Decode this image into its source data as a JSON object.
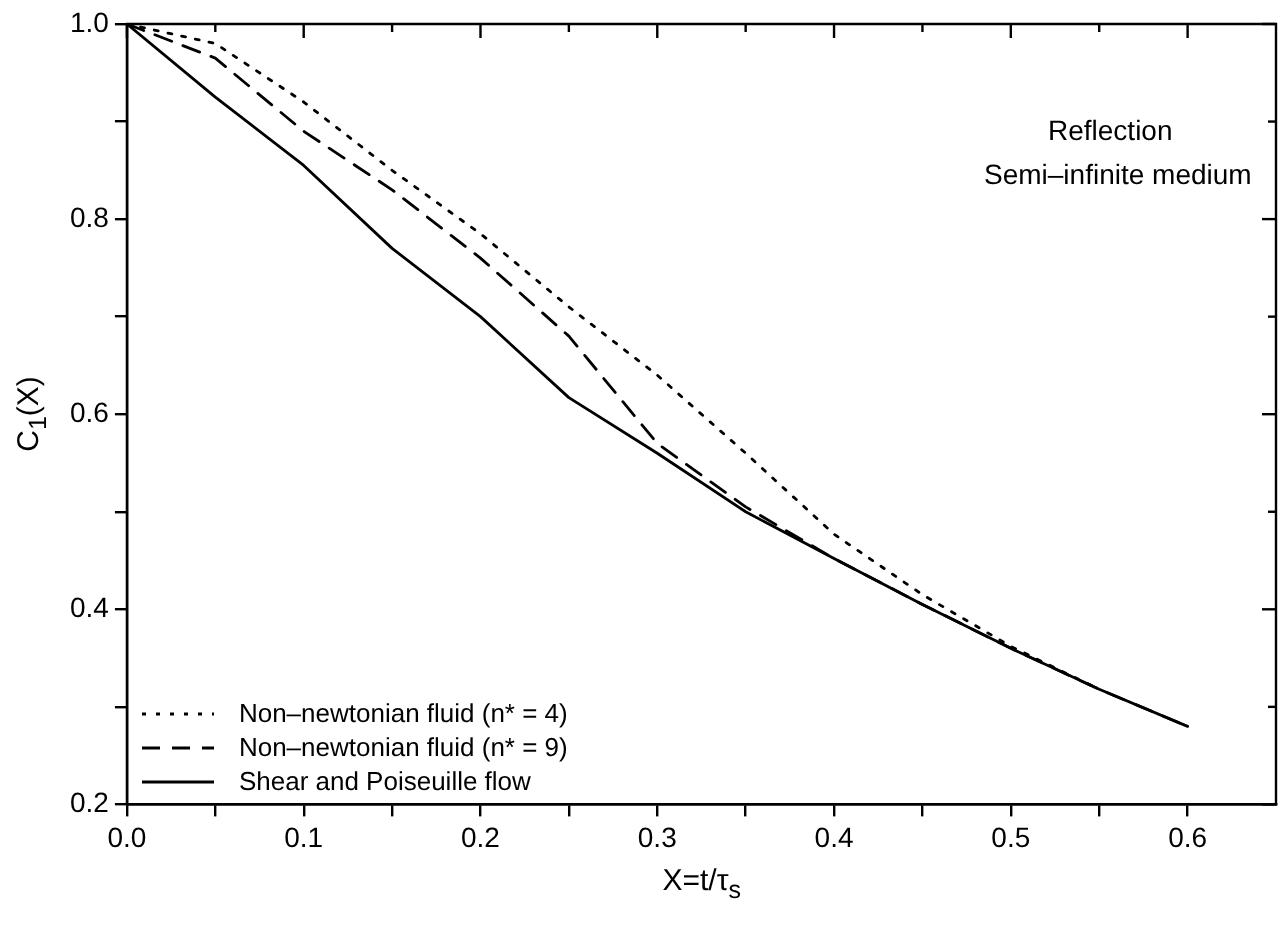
{
  "chart_data": {
    "type": "line",
    "xlabel": "X=t/τ$_{s}$",
    "ylabel": "C$_{1}$(X)",
    "x": [
      0,
      0.05,
      0.1,
      0.15,
      0.2,
      0.25,
      0.3,
      0.35,
      0.4,
      0.45,
      0.5,
      0.55,
      0.6
    ],
    "series": [
      {
        "name": "Non–newtonian fluid (n* = 4)",
        "color": "#000000",
        "line_style": "dotted",
        "values": [
          1,
          0.98,
          0.92,
          0.85,
          0.785,
          0.71,
          0.64,
          0.56,
          0.477,
          0.415,
          0.362,
          0.318,
          null
        ]
      },
      {
        "name": "Non–newtonian fluid (n* = 9)",
        "color": "#000000",
        "line_style": "dashed",
        "values": [
          1,
          0.965,
          0.89,
          0.83,
          0.76,
          0.68,
          0.57,
          0.505,
          0.452,
          0.405,
          0.36,
          0.318,
          0.28
        ]
      },
      {
        "name": "Shear and Poiseuille flow",
        "color": "#000000",
        "line_style": "solid",
        "values": [
          1,
          0.925,
          0.855,
          0.77,
          0.7,
          0.617,
          0.56,
          0.5,
          0.452,
          0.405,
          0.36,
          0.318,
          0.28
        ]
      }
    ],
    "xlim": [
      0,
      0.65
    ],
    "xticks": [
      {
        "value": 0,
        "label": "0.0"
      },
      {
        "value": 0.05,
        "label": null
      },
      0.1,
      {
        "value": 0.15,
        "label": null
      },
      0.2,
      {
        "value": 0.25,
        "label": null
      },
      0.3,
      {
        "value": 0.35,
        "label": null
      },
      0.4,
      {
        "value": 0.45,
        "label": null
      },
      0.5,
      {
        "value": 0.55,
        "label": null
      },
      0.6
    ],
    "ylim": [
      0.2,
      1.0
    ],
    "yticks": [
      0.2,
      {
        "value": 0.3,
        "label": null
      },
      0.4,
      {
        "value": 0.5,
        "label": null
      },
      0.6,
      {
        "value": 0.7,
        "label": null
      },
      0.8,
      {
        "value": 0.9,
        "label": null
      },
      {
        "value": 1,
        "label": "1.0"
      }
    ],
    "annotations": [
      "Reflection",
      "Semi–infinite medium"
    ],
    "legend": "bottom left",
    "grid": false,
    "marker": "none"
  }
}
